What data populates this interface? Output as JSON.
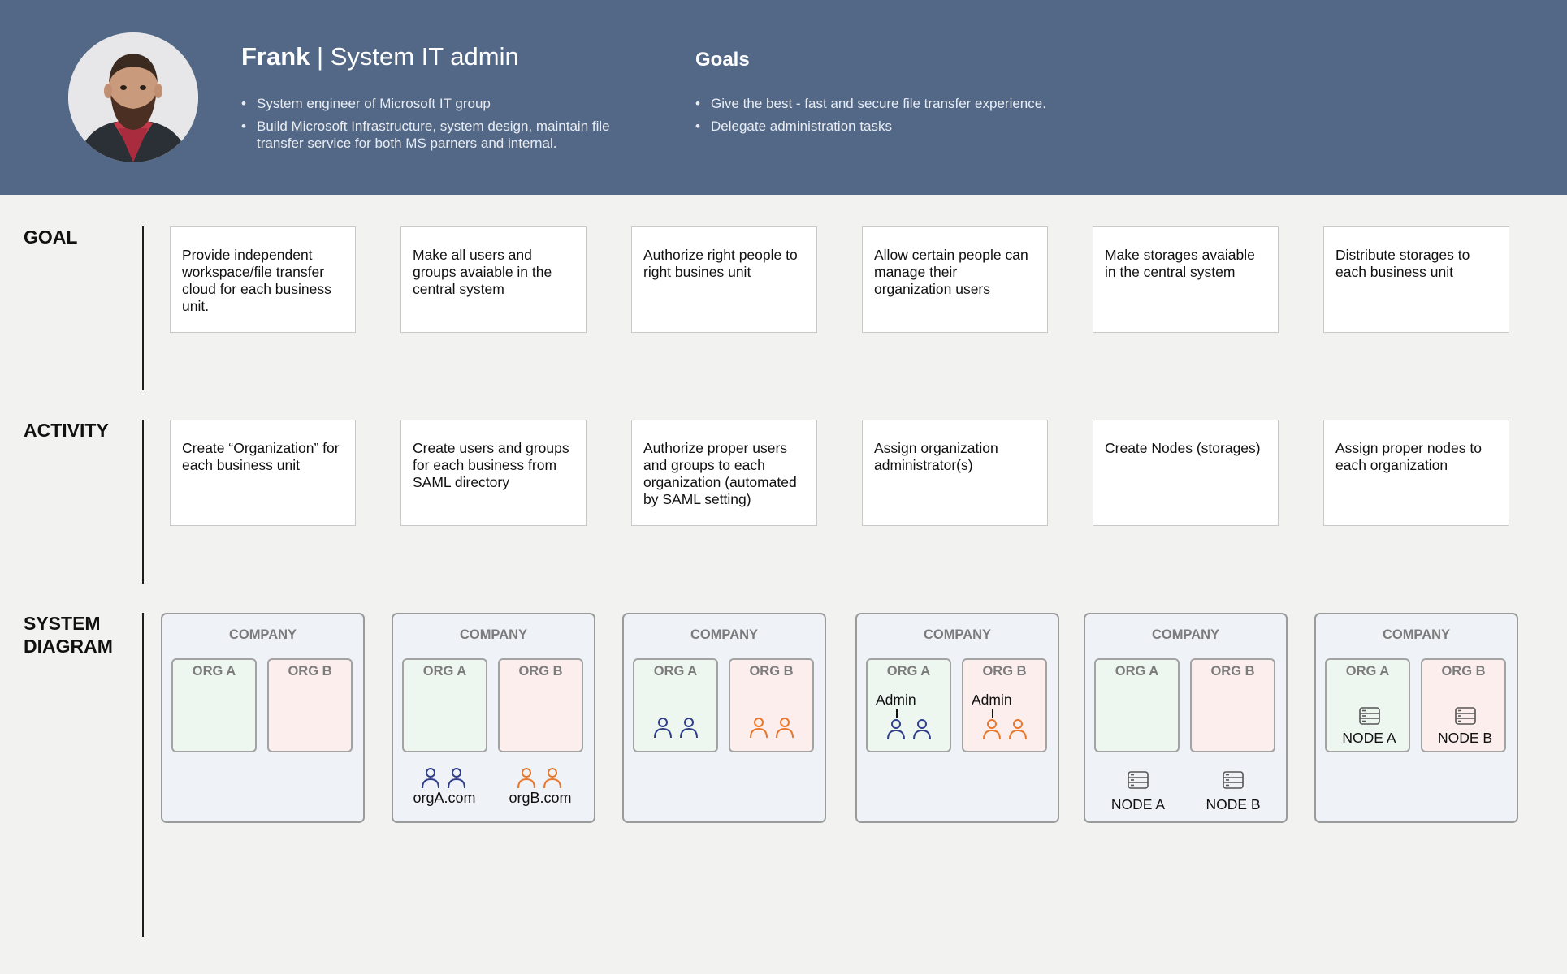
{
  "header": {
    "name": "Frank",
    "separator": " | ",
    "role": "System IT admin",
    "persona_bullets": [
      "System engineer of Microsoft IT group",
      "Build Microsoft Infrastructure, system design, maintain file transfer service for both MS parners and internal."
    ],
    "goals_title": "Goals",
    "goals_bullets": [
      "Give the best - fast and secure file transfer experience.",
      "Delegate administration tasks"
    ]
  },
  "rows": {
    "goal_label": "GOAL",
    "activity_label": "ACTIVITY",
    "system_label_line1": "SYSTEM",
    "system_label_line2": "DIAGRAM"
  },
  "goals": [
    "Provide independent workspace/file transfer cloud for each business unit.",
    "Make all users and groups avaiable in the central system",
    "Authorize right people to right busines unit",
    "Allow certain people can manage their organization users",
    "Make storages avaiable in the central system",
    "Distribute storages to each business unit"
  ],
  "activities": [
    "Create “Organization” for each business unit",
    "Create users and groups for each business from SAML directory",
    "Authorize proper users and groups to each organization (automated by SAML setting)",
    "Assign organization administrator(s)",
    "Create Nodes (storages)",
    "Assign proper nodes to each organization"
  ],
  "diagram": {
    "company": "COMPANY",
    "org_a": "ORG A",
    "org_b": "ORG B",
    "admin": "Admin",
    "org_a_domain": "orgA.com",
    "org_b_domain": "orgB.com",
    "node_a": "NODE A",
    "node_b": "NODE B"
  },
  "colors": {
    "header_bg": "#536886",
    "org_a_users": "#2f3f8a",
    "org_b_users": "#e8772e"
  }
}
